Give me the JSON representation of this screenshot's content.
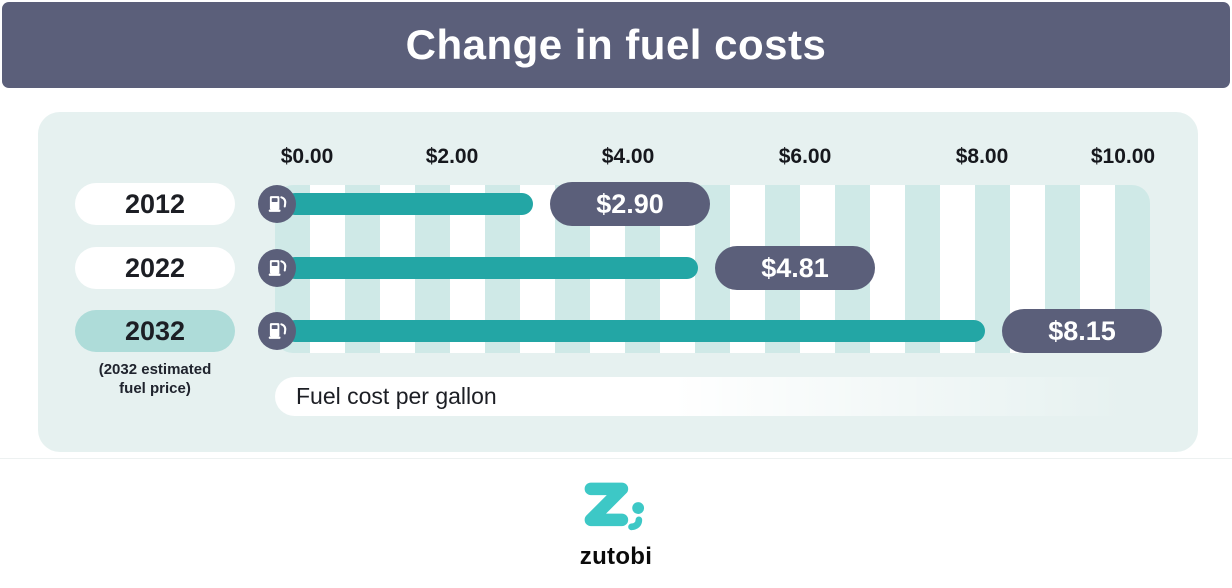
{
  "header": {
    "title": "Change in fuel costs"
  },
  "chart_data": {
    "type": "bar",
    "orientation": "horizontal",
    "title": "Change in fuel costs",
    "categories": [
      "2012",
      "2022",
      "2032"
    ],
    "values": [
      2.9,
      4.81,
      8.15
    ],
    "value_labels": [
      "$2.90",
      "$4.81",
      "$8.15"
    ],
    "x_ticks": [
      "$0.00",
      "$2.00",
      "$4.00",
      "$6.00",
      "$8.00",
      "$10.00"
    ],
    "xlim": [
      0,
      10
    ],
    "xlabel": "Fuel cost per gallon",
    "note_lines": [
      "(2032 estimated",
      "fuel price)"
    ],
    "highlighted_category": "2032",
    "legend_position": "none",
    "grid": "striped-background",
    "colors": {
      "bar": "#23a6a5",
      "value_pill": "#5b5f7a",
      "header": "#5b5f7a",
      "panel_background": "#e6f1f0",
      "stripe": "#cfe9e7",
      "highlight_pill": "#aedcd9",
      "brand_teal": "#3dc8c6"
    }
  },
  "footer": {
    "brand": "zutobi"
  }
}
